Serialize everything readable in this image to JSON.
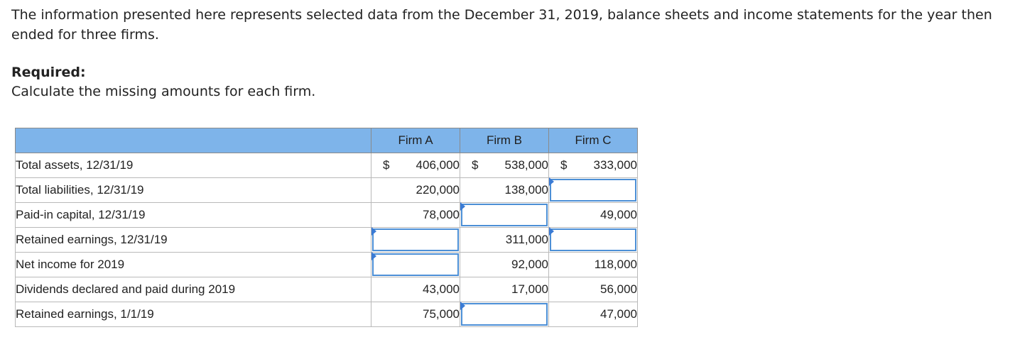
{
  "intro": "The information presented here represents selected data from the December 31, 2019, balance sheets and income statements for the year then ended for three firms.",
  "required": {
    "heading": "Required:",
    "text": "Calculate the missing amounts for each firm."
  },
  "table": {
    "header": [
      "",
      "Firm A",
      "Firm B",
      "Firm C"
    ],
    "currency_symbol": "$",
    "rows": [
      {
        "label": "Total assets, 12/31/19",
        "a": "406,000",
        "b": "538,000",
        "c": "333,000"
      },
      {
        "label": "Total liabilities, 12/31/19",
        "a": "220,000",
        "b": "138,000",
        "c": ""
      },
      {
        "label": "Paid-in capital, 12/31/19",
        "a": "78,000",
        "b": "",
        "c": "49,000"
      },
      {
        "label": "Retained earnings, 12/31/19",
        "a": "",
        "b": "311,000",
        "c": ""
      },
      {
        "label": "Net income for 2019",
        "a": "",
        "b": "92,000",
        "c": "118,000"
      },
      {
        "label": "Dividends declared and paid during 2019",
        "a": "43,000",
        "b": "17,000",
        "c": "56,000"
      },
      {
        "label": "Retained earnings, 1/1/19",
        "a": "75,000",
        "b": "",
        "c": "47,000"
      }
    ]
  },
  "colors": {
    "header_bg": "#7eb4ea",
    "input_border": "#4c8fd6"
  }
}
